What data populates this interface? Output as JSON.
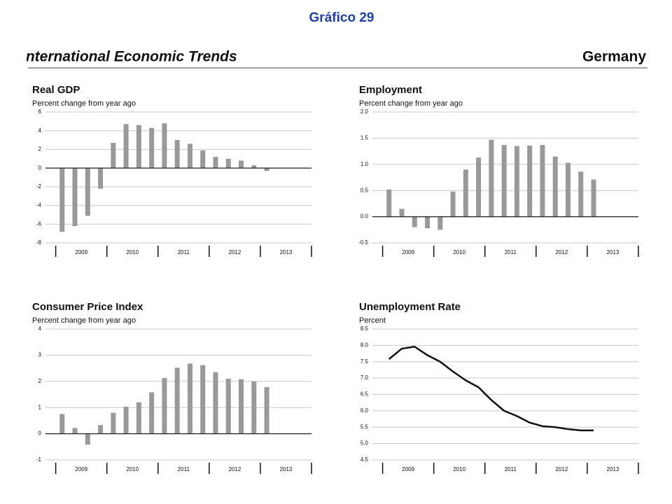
{
  "page": {
    "title": "Gráfico 29",
    "header": "International Economic Trends",
    "country": "Germany"
  },
  "chart_data": [
    {
      "type": "bar",
      "title": "Real GDP",
      "subtitle": "Percent change from year ago",
      "color": "#999999",
      "x": [
        2009.125,
        2009.375,
        2009.625,
        2009.875,
        2010.125,
        2010.375,
        2010.625,
        2010.875,
        2011.125,
        2011.375,
        2011.625,
        2011.875,
        2012.125,
        2012.375,
        2012.625,
        2012.875,
        2013.125
      ],
      "values": [
        -6.8,
        -6.2,
        -5.1,
        -2.2,
        2.7,
        4.7,
        4.6,
        4.3,
        4.8,
        3.0,
        2.6,
        1.9,
        1.2,
        1.0,
        0.8,
        0.3,
        -0.3
      ],
      "xlim": [
        2008.8,
        2014
      ],
      "xticks": [
        {
          "value": 2009.5,
          "label": "2009"
        },
        {
          "value": 2010.5,
          "label": "2010"
        },
        {
          "value": 2011.5,
          "label": "2011"
        },
        {
          "value": 2012.5,
          "label": "2012"
        },
        {
          "value": 2013.5,
          "label": "2013"
        }
      ],
      "ylim": [
        -8,
        6
      ],
      "yticks": [
        -8,
        -6,
        -4,
        -2,
        0,
        2,
        4,
        6
      ],
      "grid": true
    },
    {
      "type": "bar",
      "title": "Employment",
      "subtitle": "Percent change from year ago",
      "color": "#999999",
      "x": [
        2009.125,
        2009.375,
        2009.625,
        2009.875,
        2010.125,
        2010.375,
        2010.625,
        2010.875,
        2011.125,
        2011.375,
        2011.625,
        2011.875,
        2012.125,
        2012.375,
        2012.625,
        2012.875,
        2013.125
      ],
      "values": [
        0.52,
        0.15,
        -0.2,
        -0.22,
        -0.25,
        0.48,
        0.9,
        1.13,
        1.47,
        1.37,
        1.35,
        1.36,
        1.37,
        1.15,
        1.03,
        0.86,
        0.71
      ],
      "xlim": [
        2008.8,
        2014
      ],
      "xticks": [
        {
          "value": 2009.5,
          "label": "2009"
        },
        {
          "value": 2010.5,
          "label": "2010"
        },
        {
          "value": 2011.5,
          "label": "2011"
        },
        {
          "value": 2012.5,
          "label": "2012"
        },
        {
          "value": 2013.5,
          "label": "2013"
        }
      ],
      "ylim": [
        -0.5,
        2.0
      ],
      "yticks": [
        -0.5,
        {
          "value": 0,
          "label": "0.0"
        },
        0.5,
        {
          "value": 1,
          "label": "1.0"
        },
        1.5,
        {
          "value": 2,
          "label": "2.0"
        }
      ],
      "grid": true
    },
    {
      "type": "bar",
      "title": "Consumer Price Index",
      "subtitle": "Percent change from year ago",
      "color": "#999999",
      "x": [
        2009.125,
        2009.375,
        2009.625,
        2009.875,
        2010.125,
        2010.375,
        2010.625,
        2010.875,
        2011.125,
        2011.375,
        2011.625,
        2011.875,
        2012.125,
        2012.375,
        2012.625,
        2012.875,
        2013.125
      ],
      "values": [
        0.75,
        0.22,
        -0.42,
        0.33,
        0.8,
        1.03,
        1.2,
        1.58,
        2.13,
        2.52,
        2.68,
        2.62,
        2.35,
        2.1,
        2.08,
        2.0,
        1.78
      ],
      "xlim": [
        2008.8,
        2014
      ],
      "xticks": [
        {
          "value": 2009.5,
          "label": "2009"
        },
        {
          "value": 2010.5,
          "label": "2010"
        },
        {
          "value": 2011.5,
          "label": "2011"
        },
        {
          "value": 2012.5,
          "label": "2012"
        },
        {
          "value": 2013.5,
          "label": "2013"
        }
      ],
      "ylim": [
        -1,
        4
      ],
      "yticks": [
        -1,
        0,
        1,
        2,
        3,
        4
      ],
      "grid": true
    },
    {
      "type": "line",
      "title": "Unemployment Rate",
      "subtitle": "Percent",
      "color": "#111111",
      "x": [
        2009.125,
        2009.375,
        2009.625,
        2009.875,
        2010.125,
        2010.375,
        2010.625,
        2010.875,
        2011.125,
        2011.375,
        2011.625,
        2011.875,
        2012.125,
        2012.375,
        2012.625,
        2012.875,
        2013.125
      ],
      "values": [
        7.58,
        7.9,
        7.96,
        7.7,
        7.5,
        7.2,
        6.93,
        6.72,
        6.33,
        6.0,
        5.84,
        5.64,
        5.53,
        5.5,
        5.44,
        5.4,
        5.4
      ],
      "xlim": [
        2008.8,
        2014
      ],
      "xticks": [
        {
          "value": 2009.5,
          "label": "2009"
        },
        {
          "value": 2010.5,
          "label": "2010"
        },
        {
          "value": 2011.5,
          "label": "2011"
        },
        {
          "value": 2012.5,
          "label": "2012"
        },
        {
          "value": 2013.5,
          "label": "2013"
        }
      ],
      "ylim": [
        4.5,
        8.5
      ],
      "yticks": [
        4.5,
        {
          "value": 5,
          "label": "5.0"
        },
        5.5,
        {
          "value": 6,
          "label": "6.0"
        },
        6.5,
        {
          "value": 7,
          "label": "7.0"
        },
        7.5,
        {
          "value": 8,
          "label": "8.0"
        },
        8.5
      ],
      "grid": true
    }
  ]
}
